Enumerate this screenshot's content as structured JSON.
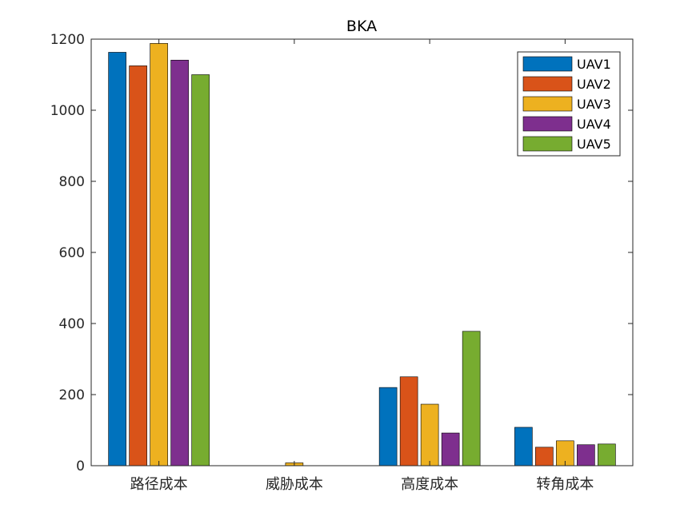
{
  "chart_data": {
    "type": "bar",
    "title": "BKA",
    "xlabel": "",
    "ylabel": "",
    "categories": [
      "路径成本",
      "威胁成本",
      "高度成本",
      "转角成本"
    ],
    "series": [
      {
        "name": "UAV1",
        "color": "#0072BD",
        "values": [
          1163,
          0,
          220,
          108
        ]
      },
      {
        "name": "UAV2",
        "color": "#D95319",
        "values": [
          1125,
          0,
          250,
          52
        ]
      },
      {
        "name": "UAV3",
        "color": "#EDB120",
        "values": [
          1188,
          8,
          173,
          70
        ]
      },
      {
        "name": "UAV4",
        "color": "#7E2F8E",
        "values": [
          1141,
          0,
          92,
          59
        ]
      },
      {
        "name": "UAV5",
        "color": "#77AC30",
        "values": [
          1100,
          0,
          378,
          61
        ]
      }
    ],
    "ylim": [
      0,
      1200
    ],
    "yticks": [
      0,
      200,
      400,
      600,
      800,
      1000,
      1200
    ],
    "legend_position": "top-right",
    "grid": false
  }
}
